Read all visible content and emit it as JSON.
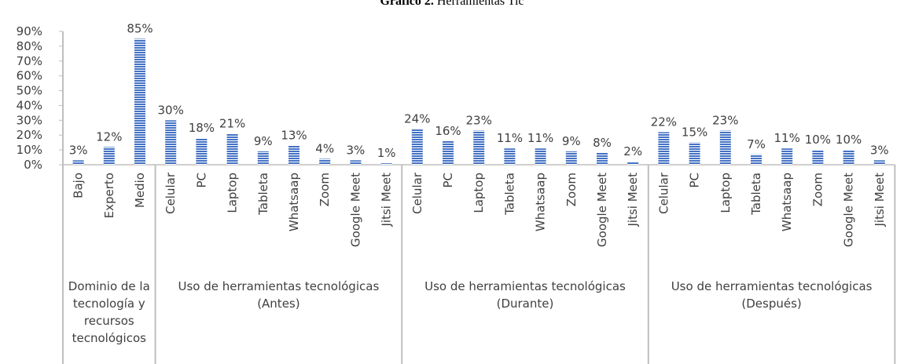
{
  "chart_data": {
    "type": "bar",
    "title": [
      "Gráfico 2.",
      "Herramientas Tic"
    ],
    "color": "#4472c4",
    "ylim": [
      0,
      90
    ],
    "yticks": [
      {
        "value": 0,
        "label": "0%"
      },
      {
        "value": 10,
        "label": "10%"
      },
      {
        "value": 20,
        "label": "20%"
      },
      {
        "value": 30,
        "label": "30%"
      },
      {
        "value": 40,
        "label": "40%"
      },
      {
        "value": 50,
        "label": "50%"
      },
      {
        "value": 60,
        "label": "60%"
      },
      {
        "value": 70,
        "label": "70%"
      },
      {
        "value": 80,
        "label": "80%"
      },
      {
        "value": 90,
        "label": "90%"
      }
    ],
    "groups": [
      {
        "label": "Dominio de la tecnología y recursos tecnológicos",
        "categories": [
          "Bajo",
          "Experto",
          "Medio"
        ],
        "values": [
          3,
          12,
          85
        ],
        "value_labels": [
          "3%",
          "12%",
          "85%"
        ]
      },
      {
        "label": "Uso de herramientas tecnológicas (Antes)",
        "categories": [
          "Celular",
          "PC",
          "Laptop",
          "Tableta",
          "Whatsaap",
          "Zoom",
          "Google Meet",
          "Jitsi Meet"
        ],
        "values": [
          30,
          18,
          21,
          9,
          13,
          4,
          3,
          1
        ],
        "value_labels": [
          "30%",
          "18%",
          "21%",
          "9%",
          "13%",
          "4%",
          "3%",
          "1%"
        ]
      },
      {
        "label": "Uso de herramientas tecnológicas (Durante)",
        "categories": [
          "Celular",
          "PC",
          "Laptop",
          "Tableta",
          "Whatsaap",
          "Zoom",
          "Google Meet",
          "Jitsi Meet"
        ],
        "values": [
          24,
          16,
          23,
          11,
          11,
          9,
          8,
          2
        ],
        "value_labels": [
          "24%",
          "16%",
          "23%",
          "11%",
          "11%",
          "9%",
          "8%",
          "2%"
        ]
      },
      {
        "label": "Uso de herramientas tecnológicas (Después)",
        "categories": [
          "Celular",
          "PC",
          "Laptop",
          "Tableta",
          "Whatsaap",
          "Zoom",
          "Google Meet",
          "Jitsi Meet"
        ],
        "values": [
          22,
          15,
          23,
          7,
          11,
          10,
          10,
          3
        ],
        "value_labels": [
          "22%",
          "15%",
          "23%",
          "7%",
          "11%",
          "10%",
          "10%",
          "3%"
        ]
      }
    ]
  }
}
